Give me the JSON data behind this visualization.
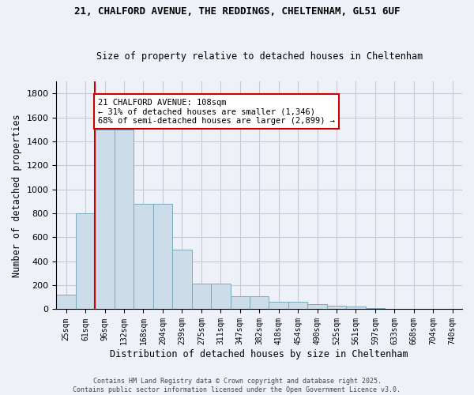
{
  "title1": "21, CHALFORD AVENUE, THE REDDINGS, CHELTENHAM, GL51 6UF",
  "title2": "Size of property relative to detached houses in Cheltenham",
  "xlabel": "Distribution of detached houses by size in Cheltenham",
  "ylabel": "Number of detached properties",
  "bin_labels": [
    "25sqm",
    "61sqm",
    "96sqm",
    "132sqm",
    "168sqm",
    "204sqm",
    "239sqm",
    "275sqm",
    "311sqm",
    "347sqm",
    "382sqm",
    "418sqm",
    "454sqm",
    "490sqm",
    "525sqm",
    "561sqm",
    "597sqm",
    "633sqm",
    "668sqm",
    "704sqm",
    "740sqm"
  ],
  "bar_values": [
    120,
    800,
    1500,
    1500,
    880,
    880,
    500,
    215,
    215,
    110,
    110,
    65,
    65,
    40,
    30,
    25,
    10,
    5,
    2,
    2,
    5
  ],
  "bar_color": "#ccdce8",
  "bar_edge_color": "#7aaabb",
  "grid_color": "#c8c8d8",
  "bg_color": "#eef2f8",
  "vline_color": "#cc0000",
  "vline_index": 2,
  "annotation_text": "21 CHALFORD AVENUE: 108sqm\n← 31% of detached houses are smaller (1,346)\n68% of semi-detached houses are larger (2,899) →",
  "annotation_box_color": "#ffffff",
  "annotation_border_color": "#cc0000",
  "footer_text": "Contains HM Land Registry data © Crown copyright and database right 2025.\nContains public sector information licensed under the Open Government Licence v3.0.",
  "ylim": [
    0,
    1900
  ],
  "yticks": [
    0,
    200,
    400,
    600,
    800,
    1000,
    1200,
    1400,
    1600,
    1800
  ]
}
